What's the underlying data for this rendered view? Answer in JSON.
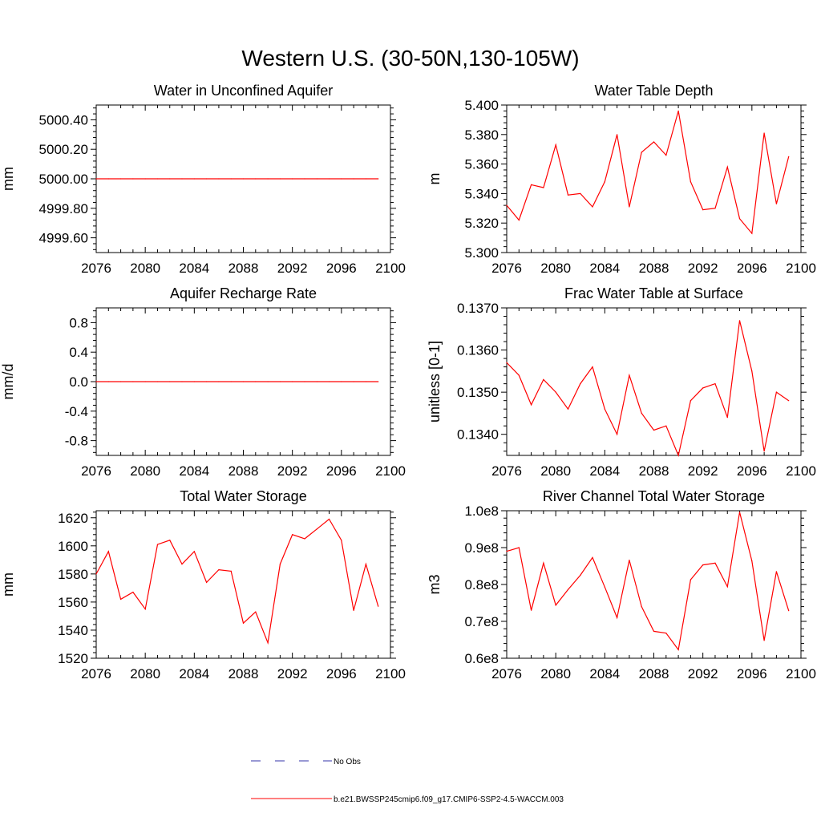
{
  "figure_title": "Western U.S. (30-50N,130-105W)",
  "legend": [
    {
      "label": "No Obs",
      "color": "#3333aa",
      "style": "dashed"
    },
    {
      "label": "b.e21.BWSSP245cmip6.f09_g17.CMIP6-SSP2-4.5-WACCM.003",
      "color": "#ff0000",
      "style": "solid"
    }
  ],
  "colors": {
    "series": "#ff0000",
    "axis": "#000000"
  },
  "chart_data": [
    {
      "type": "line",
      "title": "Water in Unconfined Aquifer",
      "ylabel": "mm",
      "xlim": [
        2076,
        2100
      ],
      "ylim": [
        4999.5,
        5000.5
      ],
      "xticks": [
        2076,
        2080,
        2084,
        2088,
        2092,
        2096,
        2100
      ],
      "yticks": [
        4999.6,
        4999.8,
        5000.0,
        5000.2,
        5000.4
      ],
      "ytick_labels": [
        "4999.60",
        "4999.80",
        "5000.00",
        "5000.20",
        "5000.40"
      ],
      "series": [
        {
          "x": [
            2076,
            2077,
            2078,
            2079,
            2080,
            2081,
            2082,
            2083,
            2084,
            2085,
            2086,
            2087,
            2088,
            2089,
            2090,
            2091,
            2092,
            2093,
            2094,
            2095,
            2096,
            2097,
            2098,
            2099
          ],
          "y": [
            5000,
            5000,
            5000,
            5000,
            5000,
            5000,
            5000,
            5000,
            5000,
            5000,
            5000,
            5000,
            5000,
            5000,
            5000,
            5000,
            5000,
            5000,
            5000,
            5000,
            5000,
            5000,
            5000,
            5000
          ]
        }
      ]
    },
    {
      "type": "line",
      "title": "Water Table Depth",
      "ylabel": "m",
      "xlim": [
        2076,
        2100
      ],
      "ylim": [
        5.3,
        5.4
      ],
      "xticks": [
        2076,
        2080,
        2084,
        2088,
        2092,
        2096,
        2100
      ],
      "yticks": [
        5.3,
        5.32,
        5.34,
        5.36,
        5.38,
        5.4
      ],
      "ytick_labels": [
        "5.300",
        "5.320",
        "5.340",
        "5.360",
        "5.380",
        "5.400"
      ],
      "series": [
        {
          "x": [
            2076,
            2077,
            2078,
            2079,
            2080,
            2081,
            2082,
            2083,
            2084,
            2085,
            2086,
            2087,
            2088,
            2089,
            2090,
            2091,
            2092,
            2093,
            2094,
            2095,
            2096,
            2097,
            2098,
            2099
          ],
          "y": [
            5.332,
            5.322,
            5.346,
            5.344,
            5.373,
            5.339,
            5.34,
            5.331,
            5.348,
            5.38,
            5.331,
            5.368,
            5.375,
            5.366,
            5.396,
            5.348,
            5.329,
            5.33,
            5.358,
            5.323,
            5.313,
            5.381,
            5.333,
            5.365
          ]
        }
      ]
    },
    {
      "type": "line",
      "title": "Aquifer Recharge Rate",
      "ylabel": "mm/d",
      "xlim": [
        2076,
        2100
      ],
      "ylim": [
        -1.0,
        1.0
      ],
      "xticks": [
        2076,
        2080,
        2084,
        2088,
        2092,
        2096,
        2100
      ],
      "yticks": [
        -0.8,
        -0.4,
        0.0,
        0.4,
        0.8
      ],
      "ytick_labels": [
        "-0.8",
        "-0.4",
        "0.0",
        "0.4",
        "0.8"
      ],
      "series": [
        {
          "x": [
            2076,
            2077,
            2078,
            2079,
            2080,
            2081,
            2082,
            2083,
            2084,
            2085,
            2086,
            2087,
            2088,
            2089,
            2090,
            2091,
            2092,
            2093,
            2094,
            2095,
            2096,
            2097,
            2098,
            2099
          ],
          "y": [
            0,
            0,
            0,
            0,
            0,
            0,
            0,
            0,
            0,
            0,
            0,
            0,
            0,
            0,
            0,
            0,
            0,
            0,
            0,
            0,
            0,
            0,
            0,
            0
          ]
        }
      ]
    },
    {
      "type": "line",
      "title": "Frac Water Table at Surface",
      "ylabel": "unitless [0-1]",
      "xlim": [
        2076,
        2100
      ],
      "ylim": [
        0.1335,
        0.137
      ],
      "xticks": [
        2076,
        2080,
        2084,
        2088,
        2092,
        2096,
        2100
      ],
      "yticks": [
        0.134,
        0.135,
        0.136,
        0.137
      ],
      "ytick_labels": [
        "0.1340",
        "0.1350",
        "0.1360",
        "0.1370"
      ],
      "series": [
        {
          "x": [
            2076,
            2077,
            2078,
            2079,
            2080,
            2081,
            2082,
            2083,
            2084,
            2085,
            2086,
            2087,
            2088,
            2089,
            2090,
            2091,
            2092,
            2093,
            2094,
            2095,
            2096,
            2097,
            2098,
            2099
          ],
          "y": [
            0.1357,
            0.1354,
            0.1347,
            0.1353,
            0.135,
            0.1346,
            0.1352,
            0.1356,
            0.1346,
            0.134,
            0.1354,
            0.1345,
            0.1341,
            0.1342,
            0.1335,
            0.1348,
            0.1351,
            0.1352,
            0.1344,
            0.1367,
            0.1355,
            0.1336,
            0.135,
            0.1348
          ]
        }
      ]
    },
    {
      "type": "line",
      "title": "Total Water Storage",
      "ylabel": "mm",
      "xlim": [
        2076,
        2100
      ],
      "ylim": [
        1520,
        1625
      ],
      "xticks": [
        2076,
        2080,
        2084,
        2088,
        2092,
        2096,
        2100
      ],
      "yticks": [
        1520,
        1540,
        1560,
        1580,
        1600,
        1620
      ],
      "ytick_labels": [
        "1520",
        "1540",
        "1560",
        "1580",
        "1600",
        "1620"
      ],
      "series": [
        {
          "x": [
            2076,
            2077,
            2078,
            2079,
            2080,
            2081,
            2082,
            2083,
            2084,
            2085,
            2086,
            2087,
            2088,
            2089,
            2090,
            2091,
            2092,
            2093,
            2094,
            2095,
            2096,
            2097,
            2098,
            2099
          ],
          "y": [
            1580,
            1596,
            1562,
            1567,
            1555,
            1601,
            1604,
            1587,
            1596,
            1574,
            1583,
            1582,
            1545,
            1553,
            1531,
            1587,
            1608,
            1605,
            1612,
            1619,
            1604,
            1554,
            1587,
            1557
          ]
        }
      ]
    },
    {
      "type": "line",
      "title": "River Channel Total Water Storage",
      "ylabel": "m3",
      "xlim": [
        2076,
        2100
      ],
      "ylim": [
        60000000,
        100000000
      ],
      "xticks": [
        2076,
        2080,
        2084,
        2088,
        2092,
        2096,
        2100
      ],
      "yticks": [
        60000000,
        70000000,
        80000000,
        90000000,
        100000000
      ],
      "ytick_labels": [
        "0.6e8",
        "0.7e8",
        "0.8e8",
        "0.9e8",
        "1.0e8"
      ],
      "series": [
        {
          "x": [
            2076,
            2077,
            2078,
            2079,
            2080,
            2081,
            2082,
            2083,
            2084,
            2085,
            2086,
            2087,
            2088,
            2089,
            2090,
            2091,
            2092,
            2093,
            2094,
            2095,
            2096,
            2097,
            2098,
            2099
          ],
          "y": [
            89000000,
            90000000,
            73000000,
            85800000,
            74400000,
            78600000,
            82500000,
            87300000,
            79300000,
            71000000,
            86600000,
            74000000,
            67300000,
            66800000,
            62300000,
            81300000,
            85300000,
            85800000,
            79400000,
            99600000,
            86400000,
            64800000,
            83500000,
            72900000
          ]
        }
      ]
    }
  ]
}
